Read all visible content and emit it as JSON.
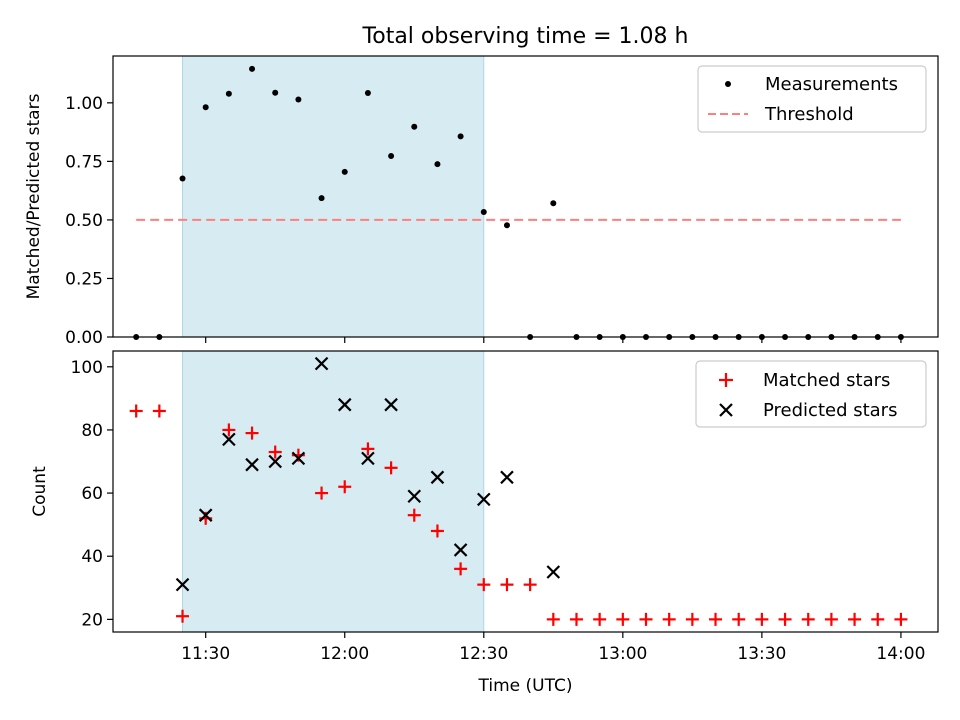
{
  "chart_data": [
    {
      "type": "scatter",
      "title": "Total observing time = 1.08 h",
      "xlabel": "",
      "ylabel": "Matched/Predicted stars",
      "xlim": [
        "11:10",
        "14:08"
      ],
      "ylim": [
        0,
        1.2
      ],
      "yticks": [
        "0.00",
        "0.25",
        "0.50",
        "0.75",
        "1.00"
      ],
      "xticks": [
        "11:30",
        "12:00",
        "12:30",
        "13:00",
        "13:30",
        "14:00"
      ],
      "highlight_span": [
        "11:25",
        "12:30"
      ],
      "legend": "top-right",
      "series": [
        {
          "name": "Measurements",
          "marker": "dot",
          "color": "#000000",
          "x": [
            "11:15",
            "11:20",
            "11:25",
            "11:30",
            "11:35",
            "11:40",
            "11:45",
            "11:50",
            "11:55",
            "12:00",
            "12:05",
            "12:10",
            "12:15",
            "12:20",
            "12:25",
            "12:30",
            "12:35",
            "12:40",
            "12:45",
            "12:50",
            "12:55",
            "13:00",
            "13:05",
            "13:10",
            "13:15",
            "13:20",
            "13:25",
            "13:30",
            "13:35",
            "13:40",
            "13:45",
            "13:50",
            "13:55",
            "14:00"
          ],
          "y": [
            0,
            0,
            0.677,
            0.981,
            1.039,
            1.145,
            1.043,
            1.014,
            0.593,
            0.705,
            1.042,
            0.773,
            0.898,
            0.738,
            0.857,
            0.534,
            0.477,
            0,
            0.571,
            0,
            0,
            0,
            0,
            0,
            0,
            0,
            0,
            0,
            0,
            0,
            0,
            0,
            0,
            0
          ]
        },
        {
          "name": "Threshold",
          "marker": "dashed-line",
          "color": "#ff7f7f",
          "x": [
            "11:15",
            "14:00"
          ],
          "y": [
            0.5,
            0.5
          ]
        }
      ]
    },
    {
      "type": "scatter",
      "title": "",
      "xlabel": "Time (UTC)",
      "ylabel": "Count",
      "xlim": [
        "11:10",
        "14:08"
      ],
      "ylim": [
        16,
        105
      ],
      "yticks": [
        "20",
        "40",
        "60",
        "80",
        "100"
      ],
      "xticks": [
        "11:30",
        "12:00",
        "12:30",
        "13:00",
        "13:30",
        "14:00"
      ],
      "highlight_span": [
        "11:25",
        "12:30"
      ],
      "legend": "top-right",
      "series": [
        {
          "name": "Matched stars",
          "marker": "plus",
          "color": "#ff0000",
          "x": [
            "11:15",
            "11:20",
            "11:25",
            "11:30",
            "11:35",
            "11:40",
            "11:45",
            "11:50",
            "11:55",
            "12:00",
            "12:05",
            "12:10",
            "12:15",
            "12:20",
            "12:25",
            "12:30",
            "12:35",
            "12:40",
            "12:45",
            "12:50",
            "12:55",
            "13:00",
            "13:05",
            "13:10",
            "13:15",
            "13:20",
            "13:25",
            "13:30",
            "13:35",
            "13:40",
            "13:45",
            "13:50",
            "13:55",
            "14:00"
          ],
          "y": [
            86,
            86,
            21,
            52,
            80,
            79,
            73,
            72,
            60,
            62,
            74,
            68,
            53,
            48,
            36,
            31,
            31,
            31,
            20,
            20,
            20,
            20,
            20,
            20,
            20,
            20,
            20,
            20,
            20,
            20,
            20,
            20,
            20,
            20
          ]
        },
        {
          "name": "Predicted stars",
          "marker": "x",
          "color": "#000000",
          "x": [
            "11:25",
            "11:30",
            "11:35",
            "11:40",
            "11:45",
            "11:50",
            "11:55",
            "12:00",
            "12:05",
            "12:10",
            "12:15",
            "12:20",
            "12:25",
            "12:30",
            "12:35",
            "12:45"
          ],
          "y": [
            31,
            53,
            77,
            69,
            70,
            71,
            101,
            88,
            71,
            88,
            59,
            65,
            42,
            58,
            65,
            35
          ]
        }
      ]
    }
  ],
  "colors": {
    "span": "#add8e6",
    "threshold": "#ff7f7f",
    "matched": "#ff0000",
    "predicted": "#000000",
    "measurements": "#000000"
  }
}
